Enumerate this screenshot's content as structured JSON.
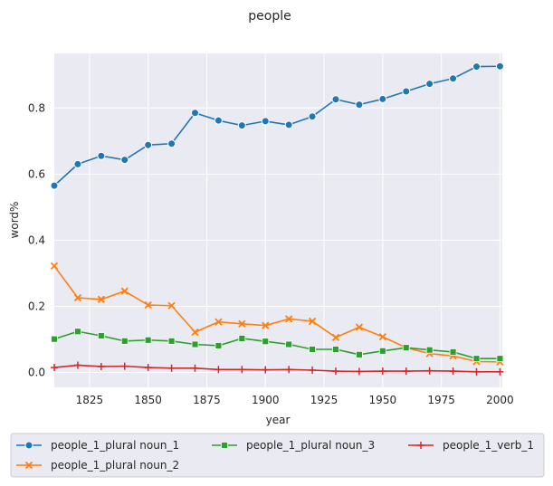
{
  "chart_data": {
    "type": "line",
    "title": "people",
    "xlabel": "year",
    "ylabel": "word%",
    "xlim": [
      1810,
      2001
    ],
    "ylim": [
      -0.045,
      0.965
    ],
    "xticks": [
      1825,
      1850,
      1875,
      1900,
      1925,
      1950,
      1975,
      2000
    ],
    "yticks": [
      0.0,
      0.2,
      0.4,
      0.6,
      0.8
    ],
    "grid": true,
    "legend_position": "bottom",
    "x": [
      1810,
      1820,
      1830,
      1840,
      1850,
      1860,
      1870,
      1880,
      1890,
      1900,
      1910,
      1920,
      1930,
      1940,
      1950,
      1960,
      1970,
      1980,
      1990,
      2000
    ],
    "series": [
      {
        "name": "people_1_plural noun_1",
        "color": "#1f77b4",
        "marker": "circle",
        "values": [
          0.565,
          0.63,
          0.655,
          0.643,
          0.688,
          0.692,
          0.785,
          0.762,
          0.747,
          0.76,
          0.749,
          0.774,
          0.826,
          0.81,
          0.827,
          0.85,
          0.873,
          0.889,
          0.925,
          0.926
        ]
      },
      {
        "name": "people_1_plural noun_2",
        "color": "#ff7f0e",
        "marker": "x",
        "values": [
          0.322,
          0.226,
          0.221,
          0.246,
          0.204,
          0.202,
          0.122,
          0.153,
          0.147,
          0.142,
          0.162,
          0.155,
          0.106,
          0.137,
          0.108,
          0.075,
          0.057,
          0.05,
          0.033,
          0.032
        ]
      },
      {
        "name": "people_1_plural noun_3",
        "color": "#2ca02c",
        "marker": "square",
        "values": [
          0.101,
          0.124,
          0.111,
          0.095,
          0.098,
          0.095,
          0.085,
          0.081,
          0.103,
          0.094,
          0.085,
          0.07,
          0.07,
          0.054,
          0.065,
          0.075,
          0.068,
          0.062,
          0.042,
          0.042
        ]
      },
      {
        "name": "people_1_verb_1",
        "color": "#d62728",
        "marker": "plus",
        "values": [
          0.015,
          0.022,
          0.018,
          0.019,
          0.015,
          0.013,
          0.013,
          0.009,
          0.009,
          0.008,
          0.009,
          0.007,
          0.004,
          0.003,
          0.004,
          0.004,
          0.005,
          0.004,
          0.002,
          0.002
        ]
      }
    ]
  },
  "colors": {
    "plot_background": "#eaeaf2",
    "grid": "#ffffff"
  }
}
